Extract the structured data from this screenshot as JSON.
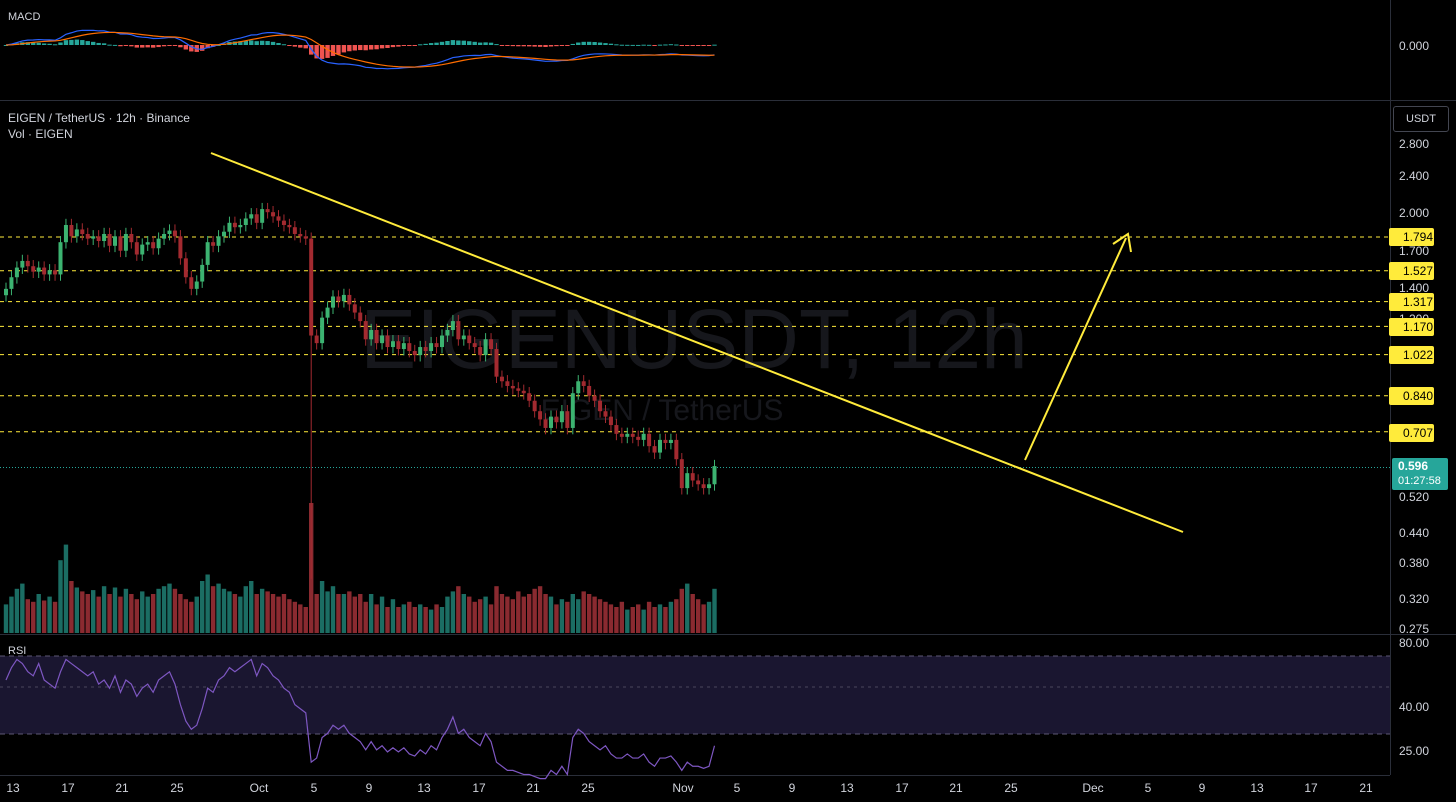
{
  "colors": {
    "bg": "#000000",
    "up": "#26a69a",
    "down": "#ef5350",
    "up_bar": "#3cb371",
    "down_bar": "#a32a30",
    "vol_up": "#1b6d63",
    "vol_down": "#8a2a30",
    "level": "#ffeb3b",
    "macd": "#2962ff",
    "signal": "#ff6d00",
    "rsi": "#7e57c2"
  },
  "header": {
    "symbol_line": "EIGEN / TetherUS · 12h · Binance",
    "vol_line": "Vol · EIGEN",
    "watermark_main": "EIGENUSDT, 12h",
    "watermark_sub": "EIGEN / TetherUS"
  },
  "panes": {
    "macd_label": "MACD",
    "rsi_label": "RSI"
  },
  "price_axis": {
    "currency": "USDT",
    "ticks": [
      "2.800",
      "2.400",
      "2.000",
      "1.700",
      "1.400",
      "1.200",
      "0.520",
      "0.440",
      "0.380",
      "0.320",
      "0.275"
    ]
  },
  "macd_axis": {
    "ticks": [
      "0.000"
    ]
  },
  "rsi_axis": {
    "ticks": [
      "80.00",
      "40.00",
      "25.00"
    ]
  },
  "levels": [
    "1.794",
    "1.527",
    "1.317",
    "1.170",
    "1.022",
    "0.840",
    "0.707"
  ],
  "last_price": {
    "value": "0.596",
    "countdown": "01:27:58"
  },
  "x_axis": {
    "labels": [
      "13",
      "17",
      "21",
      "25",
      "Oct",
      "5",
      "9",
      "13",
      "17",
      "21",
      "25",
      "Nov",
      "5",
      "9",
      "13",
      "17",
      "21",
      "25",
      "Dec",
      "5",
      "9",
      "13",
      "17",
      "21"
    ]
  },
  "chart_data": {
    "type": "candlestick",
    "title": "EIGEN / TetherUS · 12h · Binance",
    "levels": [
      1.794,
      1.527,
      1.317,
      1.17,
      1.022,
      0.84,
      0.707
    ],
    "current": 0.596,
    "trendline": {
      "from": {
        "date": "Sep 25",
        "price": 2.25
      },
      "to": {
        "date": "Dec 7",
        "price": 0.44
      }
    },
    "projection": {
      "from": {
        "date": "Nov 26",
        "price": 0.61
      },
      "to": {
        "date": "Dec 2",
        "price": 1.794
      }
    },
    "closes": [
      1.4,
      1.48,
      1.55,
      1.6,
      1.56,
      1.52,
      1.55,
      1.5,
      1.53,
      1.5,
      1.75,
      1.9,
      1.8,
      1.86,
      1.82,
      1.78,
      1.8,
      1.76,
      1.82,
      1.72,
      1.8,
      1.68,
      1.82,
      1.75,
      1.65,
      1.73,
      1.75,
      1.7,
      1.78,
      1.82,
      1.85,
      1.8,
      1.62,
      1.48,
      1.4,
      1.45,
      1.57,
      1.75,
      1.72,
      1.8,
      1.84,
      1.92,
      1.88,
      1.9,
      1.96,
      2.0,
      1.92,
      2.05,
      2.02,
      1.98,
      1.94,
      1.9,
      1.88,
      1.82,
      1.8,
      1.78,
      1.12,
      1.08,
      1.22,
      1.28,
      1.35,
      1.32,
      1.36,
      1.3,
      1.25,
      1.2,
      1.1,
      1.15,
      1.08,
      1.12,
      1.06,
      1.09,
      1.05,
      1.08,
      1.04,
      1.02,
      1.06,
      1.04,
      1.08,
      1.06,
      1.12,
      1.15,
      1.2,
      1.1,
      1.12,
      1.08,
      1.06,
      1.02,
      1.1,
      1.05,
      0.92,
      0.9,
      0.88,
      0.87,
      0.86,
      0.85,
      0.82,
      0.78,
      0.75,
      0.72,
      0.76,
      0.74,
      0.78,
      0.72,
      0.85,
      0.9,
      0.88,
      0.84,
      0.82,
      0.78,
      0.76,
      0.73,
      0.7,
      0.69,
      0.7,
      0.69,
      0.68,
      0.7,
      0.66,
      0.64,
      0.68,
      0.67,
      0.68,
      0.62,
      0.54,
      0.58,
      0.56,
      0.55,
      0.54,
      0.55,
      0.6
    ],
    "volumes": [
      22,
      28,
      34,
      38,
      26,
      24,
      30,
      25,
      28,
      24,
      56,
      68,
      40,
      35,
      32,
      30,
      33,
      28,
      36,
      30,
      35,
      28,
      34,
      30,
      26,
      32,
      28,
      30,
      34,
      36,
      38,
      34,
      30,
      26,
      24,
      28,
      40,
      45,
      36,
      38,
      34,
      32,
      30,
      28,
      36,
      40,
      30,
      34,
      32,
      30,
      28,
      30,
      26,
      24,
      22,
      20,
      100,
      30,
      40,
      32,
      36,
      30,
      30,
      32,
      28,
      30,
      24,
      30,
      22,
      28,
      20,
      26,
      20,
      22,
      24,
      20,
      22,
      20,
      18,
      22,
      20,
      28,
      32,
      36,
      30,
      28,
      24,
      26,
      28,
      22,
      36,
      30,
      28,
      26,
      32,
      28,
      30,
      34,
      36,
      30,
      28,
      22,
      26,
      24,
      30,
      26,
      32,
      30,
      28,
      26,
      24,
      22,
      20,
      24,
      18,
      20,
      22,
      18,
      24,
      20,
      22,
      20,
      24,
      26,
      34,
      38,
      30,
      26,
      22,
      24,
      34
    ],
    "rsi": [
      62,
      68,
      72,
      70,
      66,
      64,
      70,
      62,
      60,
      58,
      66,
      72,
      70,
      68,
      66,
      64,
      66,
      60,
      62,
      58,
      64,
      56,
      62,
      60,
      54,
      58,
      60,
      56,
      62,
      64,
      66,
      60,
      50,
      42,
      38,
      40,
      48,
      58,
      56,
      62,
      64,
      68,
      66,
      68,
      70,
      72,
      64,
      70,
      68,
      64,
      62,
      58,
      56,
      50,
      48,
      46,
      22,
      24,
      34,
      36,
      40,
      38,
      40,
      36,
      34,
      32,
      28,
      32,
      28,
      30,
      27,
      29,
      27,
      29,
      26,
      25,
      28,
      26,
      30,
      28,
      34,
      38,
      44,
      36,
      38,
      34,
      32,
      30,
      36,
      32,
      22,
      20,
      18,
      18,
      17,
      16,
      16,
      15,
      14,
      14,
      18,
      16,
      20,
      16,
      34,
      38,
      36,
      32,
      30,
      28,
      30,
      26,
      24,
      24,
      26,
      24,
      24,
      26,
      22,
      20,
      24,
      24,
      25,
      22,
      18,
      22,
      20,
      20,
      19,
      20,
      30
    ]
  }
}
